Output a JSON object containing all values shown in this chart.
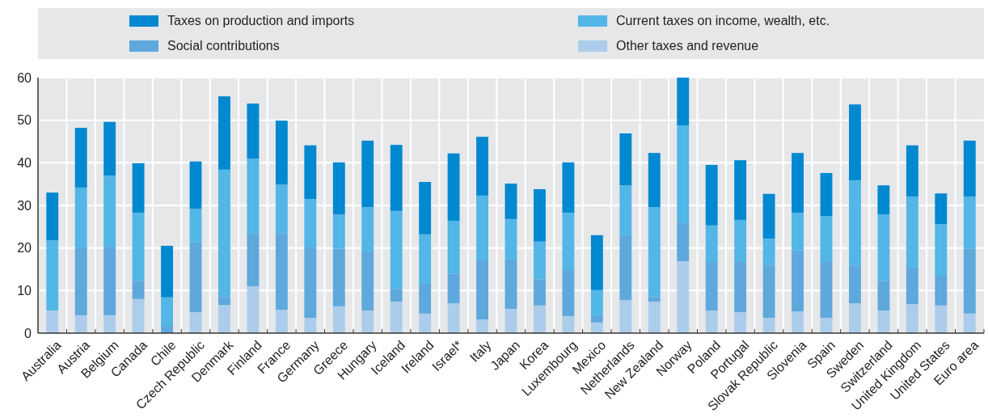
{
  "chart_data": {
    "type": "bar",
    "stacked": true,
    "categories": [
      "Australia",
      "Austria",
      "Belgium",
      "Canada",
      "Chile",
      "Czech Republic",
      "Denmark",
      "Finland",
      "France",
      "Germany",
      "Greece",
      "Hungary",
      "Iceland",
      "Ireland",
      "Israel*",
      "Italy",
      "Japan",
      "Korea",
      "Luxembourg",
      "Mexico",
      "Netherlands",
      "New Zealand",
      "Norway",
      "Poland",
      "Portugal",
      "Slovak Republic",
      "Slovenia",
      "Spain",
      "Sweden",
      "Switzerland",
      "United Kingdom",
      "United States",
      "Euro area"
    ],
    "series": [
      {
        "name": "Other taxes and revenue",
        "color": "#abcdeb",
        "values": [
          5.3,
          4.2,
          4.2,
          8.0,
          0,
          4.9,
          6.6,
          11.0,
          5.5,
          3.6,
          6.3,
          5.3,
          7.4,
          4.6,
          7.0,
          3.2,
          5.7,
          6.5,
          4.0,
          2.5,
          7.8,
          7.4,
          16.9,
          5.3,
          4.9,
          3.6,
          5.1,
          3.6,
          7.0,
          5.3,
          6.8,
          6.5,
          4.6
        ]
      },
      {
        "name": "Social contributions",
        "color": "#5ea8dc",
        "values": [
          0,
          15.9,
          16.1,
          4.3,
          1.7,
          16.4,
          1.9,
          12.4,
          18.0,
          16.5,
          13.5,
          13.9,
          2.9,
          7.0,
          6.9,
          13.9,
          11.6,
          6.1,
          10.8,
          1.5,
          15.2,
          1.1,
          8.9,
          11.4,
          11.8,
          12.3,
          14.3,
          13.1,
          8.9,
          6.9,
          8.6,
          6.8,
          15.3
        ]
      },
      {
        "name": "Current taxes on income, wealth, etc.",
        "color": "#52b6e6",
        "values": [
          16.5,
          14.1,
          16.7,
          16.0,
          6.7,
          7.9,
          29.9,
          17.6,
          11.4,
          11.4,
          8.1,
          10.4,
          18.4,
          11.6,
          12.5,
          15.2,
          9.5,
          8.9,
          13.5,
          6.1,
          11.7,
          21.1,
          23.0,
          8.6,
          9.9,
          6.3,
          8.9,
          10.8,
          20.0,
          15.7,
          16.7,
          12.3,
          12.2
        ]
      },
      {
        "name": "Taxes on production and imports",
        "color": "#0088d0",
        "values": [
          11.2,
          14.0,
          12.6,
          11.6,
          12.1,
          11.1,
          17.2,
          12.9,
          15.0,
          12.6,
          12.2,
          15.6,
          15.5,
          12.3,
          15.8,
          13.8,
          8.3,
          12.3,
          11.8,
          12.9,
          12.2,
          12.7,
          11.2,
          14.2,
          14.0,
          10.5,
          14.0,
          10.1,
          17.8,
          6.8,
          12.0,
          7.2,
          13.1
        ]
      }
    ],
    "ylim": [
      0,
      60
    ],
    "yticks": [
      0,
      10,
      20,
      30,
      40,
      50,
      60
    ],
    "grid": true,
    "legend": "top"
  }
}
